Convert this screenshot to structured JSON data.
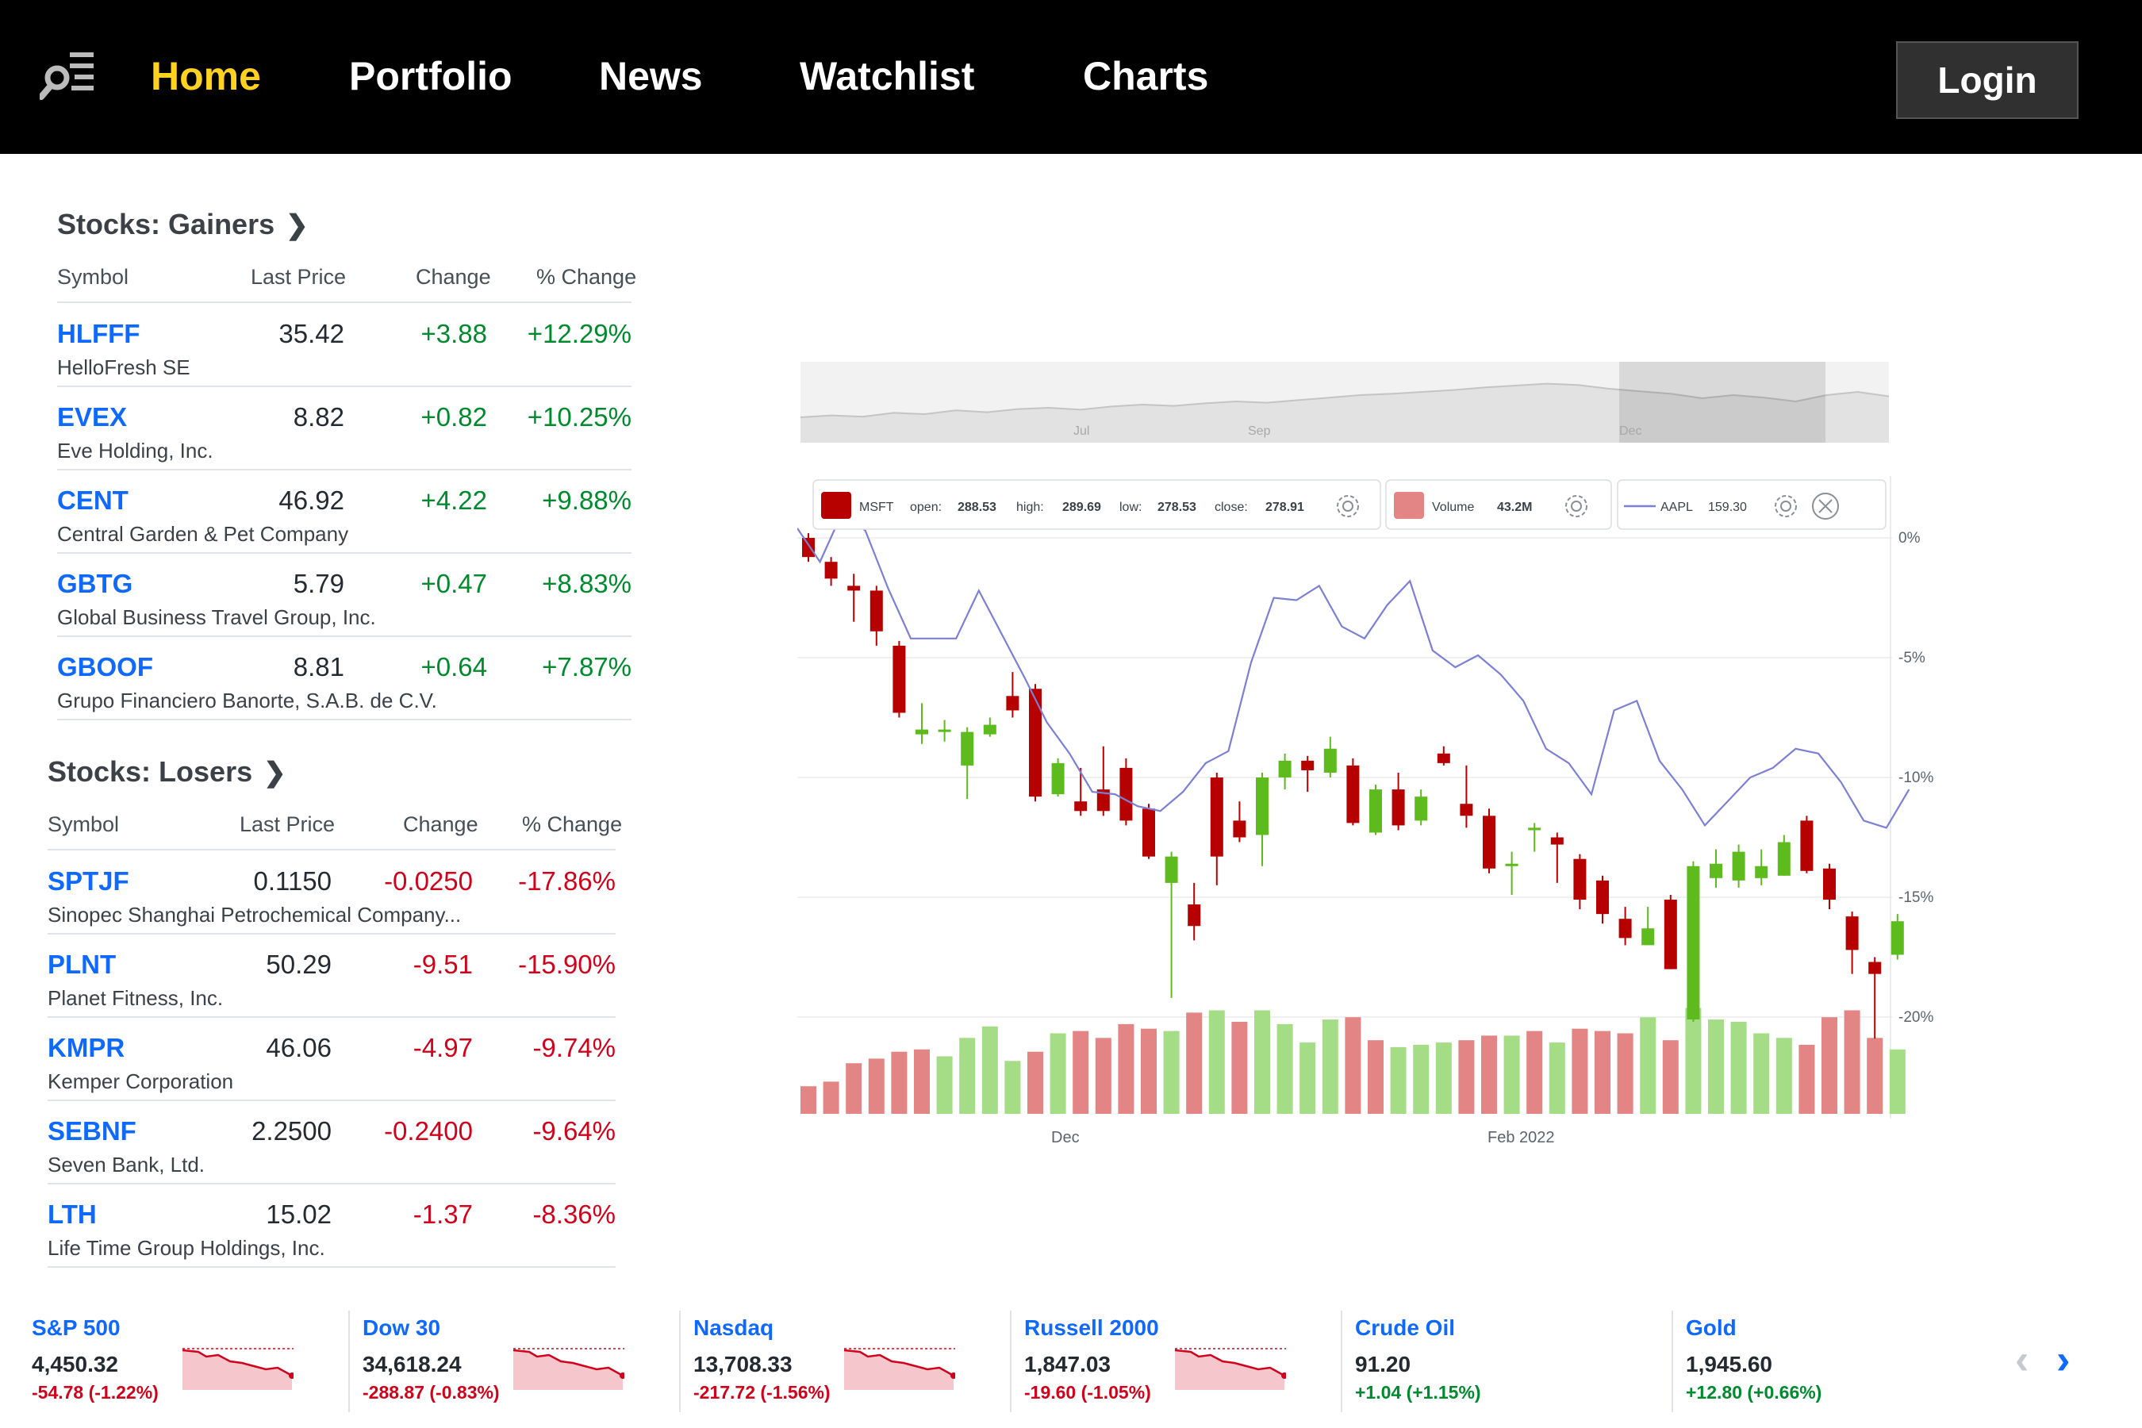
{
  "nav": {
    "logo_icon": "search-menu-icon",
    "links": [
      "Home",
      "Portfolio",
      "News",
      "Watchlist",
      "Charts"
    ],
    "active": "Home",
    "login_label": "Login"
  },
  "gainers": {
    "title": "Stocks: Gainers",
    "headers": [
      "Symbol",
      "Last Price",
      "Change",
      "% Change"
    ],
    "rows": [
      {
        "symbol": "HLFFF",
        "name": "HelloFresh SE",
        "price": "35.42",
        "change": "+3.88",
        "pct": "+12.29%"
      },
      {
        "symbol": "EVEX",
        "name": "Eve Holding, Inc.",
        "price": "8.82",
        "change": "+0.82",
        "pct": "+10.25%"
      },
      {
        "symbol": "CENT",
        "name": "Central Garden & Pet Company",
        "price": "46.92",
        "change": "+4.22",
        "pct": "+9.88%"
      },
      {
        "symbol": "GBTG",
        "name": "Global Business Travel Group, Inc.",
        "price": "5.79",
        "change": "+0.47",
        "pct": "+8.83%"
      },
      {
        "symbol": "GBOOF",
        "name": "Grupo Financiero Banorte, S.A.B. de C.V.",
        "price": "8.81",
        "change": "+0.64",
        "pct": "+7.87%"
      }
    ]
  },
  "losers": {
    "title": "Stocks: Losers",
    "headers": [
      "Symbol",
      "Last Price",
      "Change",
      "% Change"
    ],
    "rows": [
      {
        "symbol": "SPTJF",
        "name": "Sinopec Shanghai Petrochemical Company...",
        "price": "0.1150",
        "change": "-0.0250",
        "pct": "-17.86%"
      },
      {
        "symbol": "PLNT",
        "name": "Planet Fitness, Inc.",
        "price": "50.29",
        "change": "-9.51",
        "pct": "-15.90%"
      },
      {
        "symbol": "KMPR",
        "name": "Kemper Corporation",
        "price": "46.06",
        "change": "-4.97",
        "pct": "-9.74%"
      },
      {
        "symbol": "SEBNF",
        "name": "Seven Bank, Ltd.",
        "price": "2.2500",
        "change": "-0.2400",
        "pct": "-9.64%"
      },
      {
        "symbol": "LTH",
        "name": "Life Time Group Holdings, Inc.",
        "price": "15.02",
        "change": "-1.37",
        "pct": "-8.36%"
      }
    ]
  },
  "chart": {
    "navigator_labels": [
      "Jul",
      "Sep",
      "Dec"
    ],
    "legend": {
      "msft": {
        "symbol": "MSFT",
        "open_label": "open:",
        "open": "288.53",
        "high_label": "high:",
        "high": "289.69",
        "low_label": "low:",
        "low": "278.53",
        "close_label": "close:",
        "close": "278.91"
      },
      "volume": {
        "label": "Volume",
        "value": "43.2M"
      },
      "aapl": {
        "symbol": "AAPL",
        "value": "159.30"
      }
    },
    "yticks": [
      "0%",
      "-5%",
      "-10%",
      "-15%",
      "-20%"
    ],
    "xticks": [
      "Dec",
      "Feb 2022"
    ],
    "colors": {
      "up": "#5dbb1e",
      "down": "#b70000",
      "vol_up": "#a5dc86",
      "vol_down": "#e48585",
      "line": "#7b7fd6"
    }
  },
  "chart_data": {
    "type": "line",
    "series": [
      {
        "name": "MSFT",
        "kind": "candlestick",
        "candles": [
          {
            "o": 0.0,
            "c": -0.8,
            "h": 0.2,
            "l": -1.0
          },
          {
            "o": -1.0,
            "c": -1.7,
            "h": -0.8,
            "l": -2.0
          },
          {
            "o": -2.0,
            "c": -2.2,
            "h": -1.5,
            "l": -3.5
          },
          {
            "o": -2.2,
            "c": -3.9,
            "h": -2.0,
            "l": -4.5
          },
          {
            "o": -4.5,
            "c": -7.3,
            "h": -4.3,
            "l": -7.5
          },
          {
            "o": -8.2,
            "c": -8.0,
            "h": -6.9,
            "l": -8.6
          },
          {
            "o": -8.1,
            "c": -8.0,
            "h": -7.6,
            "l": -8.5
          },
          {
            "o": -9.5,
            "c": -8.1,
            "h": -7.9,
            "l": -10.9
          },
          {
            "o": -8.2,
            "c": -7.8,
            "h": -7.5,
            "l": -8.3
          },
          {
            "o": -6.6,
            "c": -7.2,
            "h": -5.6,
            "l": -7.5
          },
          {
            "o": -6.3,
            "c": -10.8,
            "h": -6.1,
            "l": -11.0
          },
          {
            "o": -10.7,
            "c": -9.4,
            "h": -9.2,
            "l": -10.8
          },
          {
            "o": -11.0,
            "c": -11.4,
            "h": -9.6,
            "l": -11.6
          },
          {
            "o": -10.5,
            "c": -11.4,
            "h": -8.7,
            "l": -11.6
          },
          {
            "o": -9.6,
            "c": -11.8,
            "h": -9.2,
            "l": -12.0
          },
          {
            "o": -11.3,
            "c": -13.3,
            "h": -11.1,
            "l": -13.4
          },
          {
            "o": -14.4,
            "c": -13.3,
            "h": -13.1,
            "l": -19.2
          },
          {
            "o": -15.3,
            "c": -16.2,
            "h": -14.4,
            "l": -16.8
          },
          {
            "o": -10.0,
            "c": -13.3,
            "h": -9.8,
            "l": -14.5
          },
          {
            "o": -11.8,
            "c": -12.5,
            "h": -11.0,
            "l": -12.7
          },
          {
            "o": -12.4,
            "c": -10.0,
            "h": -9.8,
            "l": -13.7
          },
          {
            "o": -10.0,
            "c": -9.3,
            "h": -9.0,
            "l": -10.5
          },
          {
            "o": -9.3,
            "c": -9.7,
            "h": -9.1,
            "l": -10.6
          },
          {
            "o": -9.8,
            "c": -8.8,
            "h": -8.3,
            "l": -10.0
          },
          {
            "o": -9.5,
            "c": -11.9,
            "h": -9.2,
            "l": -12.0
          },
          {
            "o": -12.3,
            "c": -10.5,
            "h": -10.3,
            "l": -12.4
          },
          {
            "o": -10.5,
            "c": -12.0,
            "h": -9.8,
            "l": -12.2
          },
          {
            "o": -11.8,
            "c": -10.8,
            "h": -10.5,
            "l": -12.0
          },
          {
            "o": -9.0,
            "c": -9.4,
            "h": -8.7,
            "l": -9.5
          },
          {
            "o": -11.1,
            "c": -11.6,
            "h": -9.5,
            "l": -12.1
          },
          {
            "o": -11.6,
            "c": -13.8,
            "h": -11.3,
            "l": -14.0
          },
          {
            "o": -13.7,
            "c": -13.6,
            "h": -13.1,
            "l": -14.9
          },
          {
            "o": -12.2,
            "c": -12.1,
            "h": -11.9,
            "l": -13.1
          },
          {
            "o": -12.5,
            "c": -12.8,
            "h": -12.3,
            "l": -14.4
          },
          {
            "o": -13.4,
            "c": -15.1,
            "h": -13.2,
            "l": -15.5
          },
          {
            "o": -14.3,
            "c": -15.7,
            "h": -14.1,
            "l": -16.1
          },
          {
            "o": -15.9,
            "c": -16.7,
            "h": -15.4,
            "l": -17.0
          },
          {
            "o": -17.0,
            "c": -16.3,
            "h": -15.4,
            "l": -17.0
          },
          {
            "o": -15.1,
            "c": -18.0,
            "h": -14.9,
            "l": -18.0
          },
          {
            "o": -20.1,
            "c": -13.7,
            "h": -13.5,
            "l": -20.2
          },
          {
            "o": -14.2,
            "c": -13.6,
            "h": -13.0,
            "l": -14.6
          },
          {
            "o": -14.3,
            "c": -13.1,
            "h": -12.8,
            "l": -14.6
          },
          {
            "o": -14.2,
            "c": -13.7,
            "h": -13.0,
            "l": -14.5
          },
          {
            "o": -14.1,
            "c": -12.7,
            "h": -12.4,
            "l": -14.1
          },
          {
            "o": -11.8,
            "c": -13.9,
            "h": -11.6,
            "l": -14.0
          },
          {
            "o": -13.8,
            "c": -15.1,
            "h": -13.6,
            "l": -15.5
          },
          {
            "o": -15.8,
            "c": -17.2,
            "h": -15.6,
            "l": -18.2
          },
          {
            "o": -17.7,
            "c": -18.2,
            "h": -17.5,
            "l": -20.9
          },
          {
            "o": -17.4,
            "c": -16.0,
            "h": -15.7,
            "l": -17.6
          }
        ]
      },
      {
        "name": "AAPL",
        "kind": "line",
        "values": [
          0.4,
          -1.0,
          1.1,
          0.3,
          -2.1,
          -4.2,
          -4.2,
          -4.2,
          -2.2,
          -4.0,
          -5.8,
          -7.7,
          -9.0,
          -10.6,
          -10.7,
          -11.2,
          -11.4,
          -10.6,
          -9.4,
          -8.9,
          -5.2,
          -2.5,
          -2.6,
          -2.0,
          -3.7,
          -4.2,
          -2.8,
          -1.8,
          -4.7,
          -5.4,
          -4.9,
          -5.7,
          -6.8,
          -8.8,
          -9.4,
          -10.7,
          -7.2,
          -6.8,
          -9.3,
          -10.5,
          -12.0,
          -11.0,
          -10.0,
          -9.6,
          -8.8,
          -9.0,
          -10.2,
          -11.8,
          -12.1,
          -10.5
        ]
      }
    ],
    "volume": [
      12,
      14,
      22,
      24,
      27,
      28,
      25,
      33,
      38,
      23,
      27,
      35,
      36,
      33,
      39,
      37,
      36,
      44,
      45,
      40,
      45,
      39,
      31,
      41,
      42,
      32,
      29,
      30,
      31,
      32,
      34,
      34,
      36,
      31,
      37,
      36,
      35,
      42,
      32,
      46,
      41,
      40,
      35,
      33,
      30,
      42,
      45,
      33,
      28
    ],
    "volume_up": [
      false,
      false,
      false,
      false,
      false,
      false,
      true,
      true,
      true,
      true,
      false,
      true,
      false,
      false,
      false,
      false,
      true,
      false,
      true,
      false,
      true,
      true,
      true,
      true,
      false,
      false,
      true,
      true,
      true,
      false,
      false,
      true,
      false,
      true,
      false,
      false,
      false,
      true,
      false,
      true,
      true,
      true,
      true,
      true,
      false,
      false,
      false,
      false,
      true
    ],
    "navigator_values": [
      0.35,
      0.38,
      0.36,
      0.42,
      0.4,
      0.46,
      0.43,
      0.48,
      0.5,
      0.47,
      0.52,
      0.55,
      0.53,
      0.57,
      0.6,
      0.58,
      0.62,
      0.66,
      0.7,
      0.72,
      0.75,
      0.78,
      0.82,
      0.85,
      0.88,
      0.86,
      0.8,
      0.76,
      0.72,
      0.65,
      0.7,
      0.66,
      0.6,
      0.7,
      0.75,
      0.68
    ],
    "y_unit": "%",
    "ylim": [
      -22,
      1
    ],
    "x_ticks": [
      "Dec",
      "Feb 2022"
    ],
    "legend_position": "top-left"
  },
  "tickers": [
    {
      "name": "S&P 500",
      "value": "4,450.32",
      "change": "-54.78 (-1.22%)",
      "dir": "down"
    },
    {
      "name": "Dow 30",
      "value": "34,618.24",
      "change": "-288.87 (-0.83%)",
      "dir": "down"
    },
    {
      "name": "Nasdaq",
      "value": "13,708.33",
      "change": "-217.72 (-1.56%)",
      "dir": "down"
    },
    {
      "name": "Russell 2000",
      "value": "1,847.03",
      "change": "-19.60 (-1.05%)",
      "dir": "down"
    },
    {
      "name": "Crude Oil",
      "value": "91.20",
      "change": "+1.04 (+1.15%)",
      "dir": "up"
    },
    {
      "name": "Gold",
      "value": "1,945.60",
      "change": "+12.80 (+0.66%)",
      "dir": "up"
    }
  ],
  "carousel": {
    "prev_icon": "chevron-left-icon",
    "next_icon": "chevron-right-icon"
  }
}
